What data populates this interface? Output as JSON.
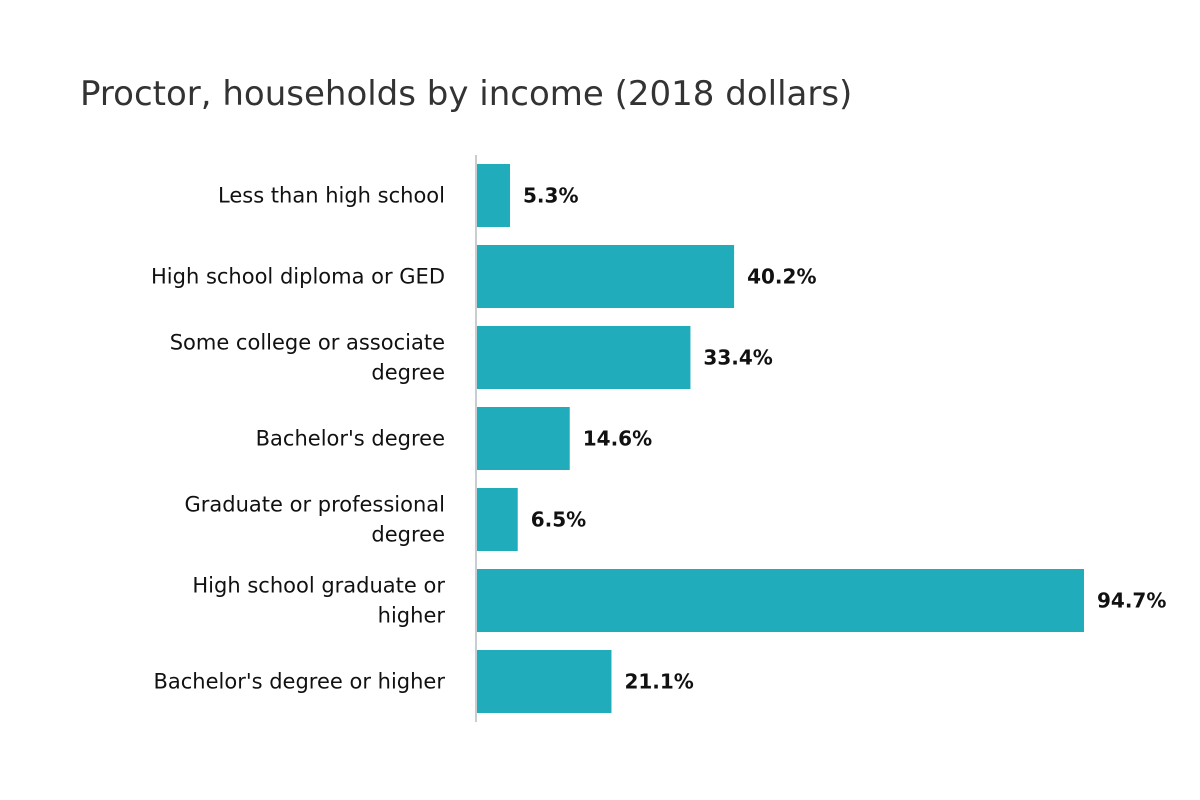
{
  "chart_data": {
    "type": "bar",
    "orientation": "horizontal",
    "title": "Proctor, households by income (2018 dollars)",
    "xlabel": "",
    "ylabel": "",
    "grid": false,
    "legend": "none",
    "xlim": [
      0,
      100
    ],
    "categories": [
      "Less than high school",
      "High school diploma or GED",
      "Some college or associate degree",
      "Bachelor's degree",
      "Graduate or professional degree",
      "High school graduate or higher",
      "Bachelor's degree or higher"
    ],
    "values": [
      5.3,
      40.2,
      33.4,
      14.6,
      6.5,
      94.7,
      21.1
    ],
    "value_labels": [
      "5.3%",
      "40.2%",
      "33.4%",
      "14.6%",
      "6.5%",
      "94.7%",
      "21.1%"
    ],
    "bar_color": "#20acbb",
    "axis_color": "#c8cdd0"
  }
}
